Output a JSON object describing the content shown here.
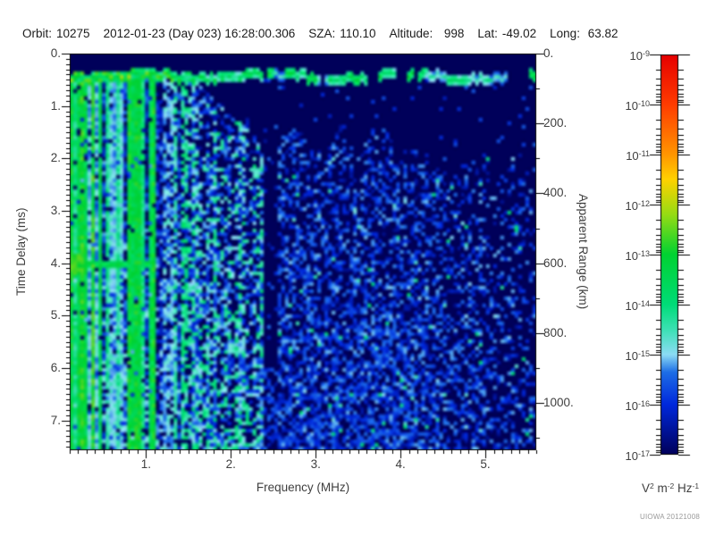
{
  "header": {
    "fields": [
      {
        "label": "Orbit:",
        "value": "10275"
      },
      {
        "label": "",
        "value": "2012-01-23 (Day 023) 16:28:00.306"
      },
      {
        "label": "SZA:",
        "value": "110.10"
      },
      {
        "label": "Altitude:",
        "value": "  998"
      },
      {
        "label": "Lat:",
        "value": "-49.02"
      },
      {
        "label": "Long:",
        "value": " 63.82"
      }
    ]
  },
  "credit": "UIOWA 20121008",
  "chart_data": {
    "type": "heatmap",
    "xlabel": "Frequency (MHz)",
    "ylabel": "Time Delay (ms)",
    "y2label": "Apparent Range (km)",
    "x_range": [
      0.1,
      5.6
    ],
    "x_major_ticks": [
      {
        "v": 1,
        "label": "1."
      },
      {
        "v": 2,
        "label": "2."
      },
      {
        "v": 3,
        "label": "3."
      },
      {
        "v": 4,
        "label": "4."
      },
      {
        "v": 5,
        "label": "5."
      }
    ],
    "x_minor_step": 0.1,
    "y_range": [
      0,
      7.57
    ],
    "y_major_ticks": [
      {
        "v": 0,
        "label": "0."
      },
      {
        "v": 1,
        "label": "1."
      },
      {
        "v": 2,
        "label": "2."
      },
      {
        "v": 3,
        "label": "3."
      },
      {
        "v": 4,
        "label": "4."
      },
      {
        "v": 5,
        "label": "5."
      },
      {
        "v": 6,
        "label": "6."
      },
      {
        "v": 7,
        "label": "7."
      }
    ],
    "y_minor_step": 0.1,
    "y2_range": [
      0,
      1135
    ],
    "y2_major_ticks": [
      {
        "v": 0,
        "label": "0."
      },
      {
        "v": 200,
        "label": "200."
      },
      {
        "v": 400,
        "label": "400."
      },
      {
        "v": 600,
        "label": "600."
      },
      {
        "v": 800,
        "label": "800."
      },
      {
        "v": 1000,
        "label": "1000."
      }
    ],
    "y2_minor_step": 100,
    "colorbar": {
      "scale": "log",
      "tick_base": "10",
      "decades": [
        -9,
        -10,
        -11,
        -12,
        -13,
        -14,
        -15,
        -16,
        -17
      ],
      "units_parts": [
        {
          "t": "V"
        },
        {
          "s": "2"
        },
        {
          "t": " m"
        },
        {
          "s": "-2"
        },
        {
          "t": " Hz"
        },
        {
          "s": "-1"
        }
      ],
      "colormap": [
        [
          -17,
          "#00005a"
        ],
        [
          -16,
          "#0028dc"
        ],
        [
          -15.35,
          "#1e6ee6"
        ],
        [
          -15,
          "#8cdcf5"
        ],
        [
          -14.5,
          "#3ce1b4"
        ],
        [
          -14,
          "#00dc78"
        ],
        [
          -13,
          "#00d232"
        ],
        [
          -12.2,
          "#96dc14"
        ],
        [
          -11.5,
          "#ffd200"
        ],
        [
          -11,
          "#ff9600"
        ],
        [
          -10,
          "#ff3c00"
        ],
        [
          -9,
          "#e60000"
        ]
      ]
    },
    "features": [
      {
        "name": "blank-top-gap",
        "delay": [
          0,
          0.34
        ]
      },
      {
        "name": "surface-echo-band",
        "delay": [
          0.34,
          0.55
        ],
        "freq": [
          0.1,
          5.6
        ],
        "exp_low_freq": [
          -14.4,
          -12.4
        ],
        "exp_high_freq": [
          -15.8,
          -14.2
        ],
        "freq_split": 2.4
      },
      {
        "name": "ionospheric-echo-stripes",
        "freq": [
          0.1,
          1.5
        ],
        "delay": [
          0.34,
          7.57
        ],
        "exp_green": -13.5,
        "exp_cyan": -14.5,
        "exp_blue": -15.4
      },
      {
        "name": "echo-line-4ms",
        "freq": [
          0.1,
          1.05
        ],
        "delay": [
          3.93,
          4.12
        ],
        "exp": -13.3
      },
      {
        "name": "noise-mid",
        "freq": [
          1.5,
          2.37
        ],
        "exp": [
          -16.7,
          -14.0
        ]
      },
      {
        "name": "quiet-band",
        "freq": [
          2.37,
          2.57
        ],
        "delay": [
          0.55,
          6.0
        ]
      },
      {
        "name": "noise-right",
        "freq": [
          2.57,
          5.6
        ],
        "exp": [
          -16.6,
          -14.6
        ]
      }
    ],
    "seed": 20121008
  }
}
